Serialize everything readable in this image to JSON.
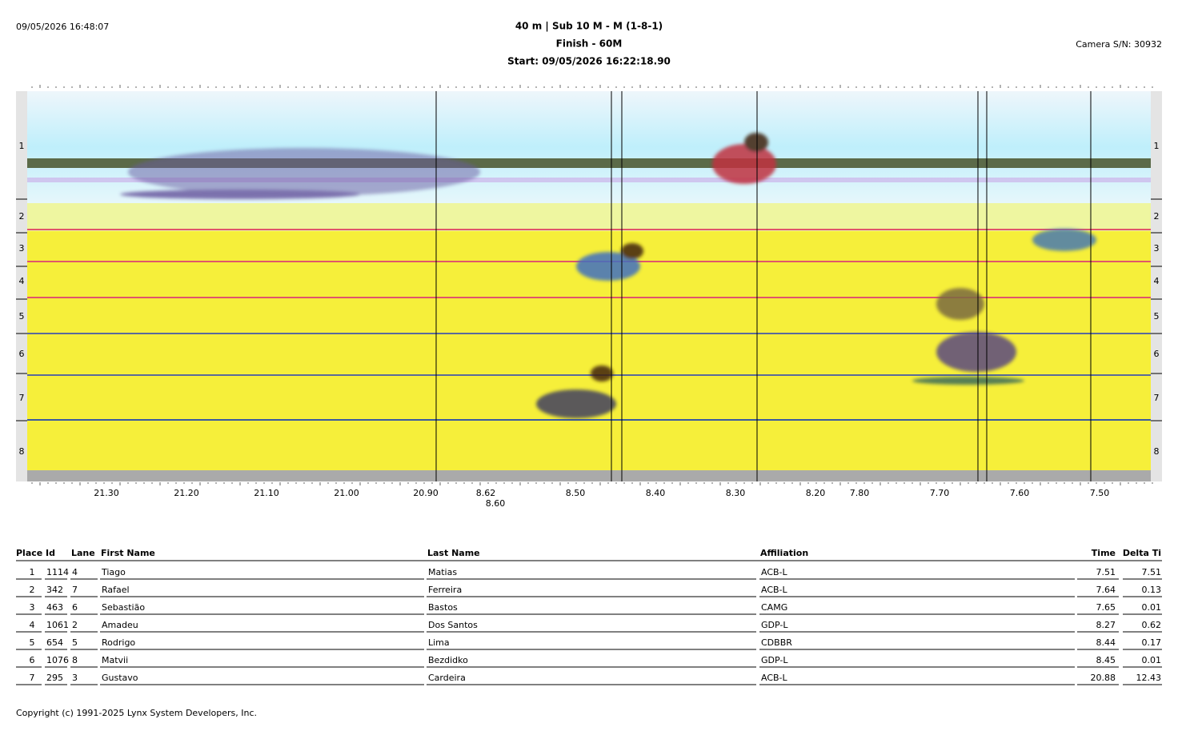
{
  "header": {
    "timestamp": "09/05/2026 16:48:07",
    "title_lines": [
      "40 m | Sub 10 M - M (1-8-1)",
      "Finish - 60M",
      "Start: 09/05/2026 16:22:18.90"
    ],
    "camera": "Camera S/N: 30932"
  },
  "photo": {
    "lanes": [
      "1",
      "2",
      "3",
      "4",
      "5",
      "6",
      "7",
      "8"
    ],
    "time_labels": [
      "21.30",
      "21.20",
      "21.10",
      "21.00",
      "20.90",
      "8.62",
      "8.60",
      "8.50",
      "8.40",
      "8.30",
      "8.20",
      "7.80",
      "7.70",
      "7.60",
      "7.50"
    ]
  },
  "table": {
    "columns": [
      "Place",
      "Id",
      "Lane",
      "First Name",
      "Last Name",
      "Affiliation",
      "Time",
      "Delta Ti"
    ],
    "rows": [
      [
        "1",
        "1114",
        "4",
        "Tiago",
        "Matias",
        "ACB-L",
        "7.51",
        "7.51"
      ],
      [
        "2",
        "342",
        "7",
        "Rafael",
        "Ferreira",
        "ACB-L",
        "7.64",
        "0.13"
      ],
      [
        "3",
        "463",
        "6",
        "Sebastião",
        "Bastos",
        "CAMG",
        "7.65",
        "0.01"
      ],
      [
        "4",
        "1061",
        "2",
        "Amadeu",
        "Dos Santos",
        "GDP-L",
        "8.27",
        "0.62"
      ],
      [
        "5",
        "654",
        "5",
        "Rodrigo",
        "Lima",
        "CDBBR",
        "8.44",
        "0.17"
      ],
      [
        "6",
        "1076",
        "8",
        "Matvii",
        "Bezdidko",
        "GDP-L",
        "8.45",
        "0.01"
      ],
      [
        "7",
        "295",
        "3",
        "Gustavo",
        "Cardeira",
        "ACB-L",
        "20.88",
        "12.43"
      ]
    ]
  },
  "footer": {
    "copyright": "Copyright (c) 1991-2025 Lynx System Developers, Inc."
  }
}
